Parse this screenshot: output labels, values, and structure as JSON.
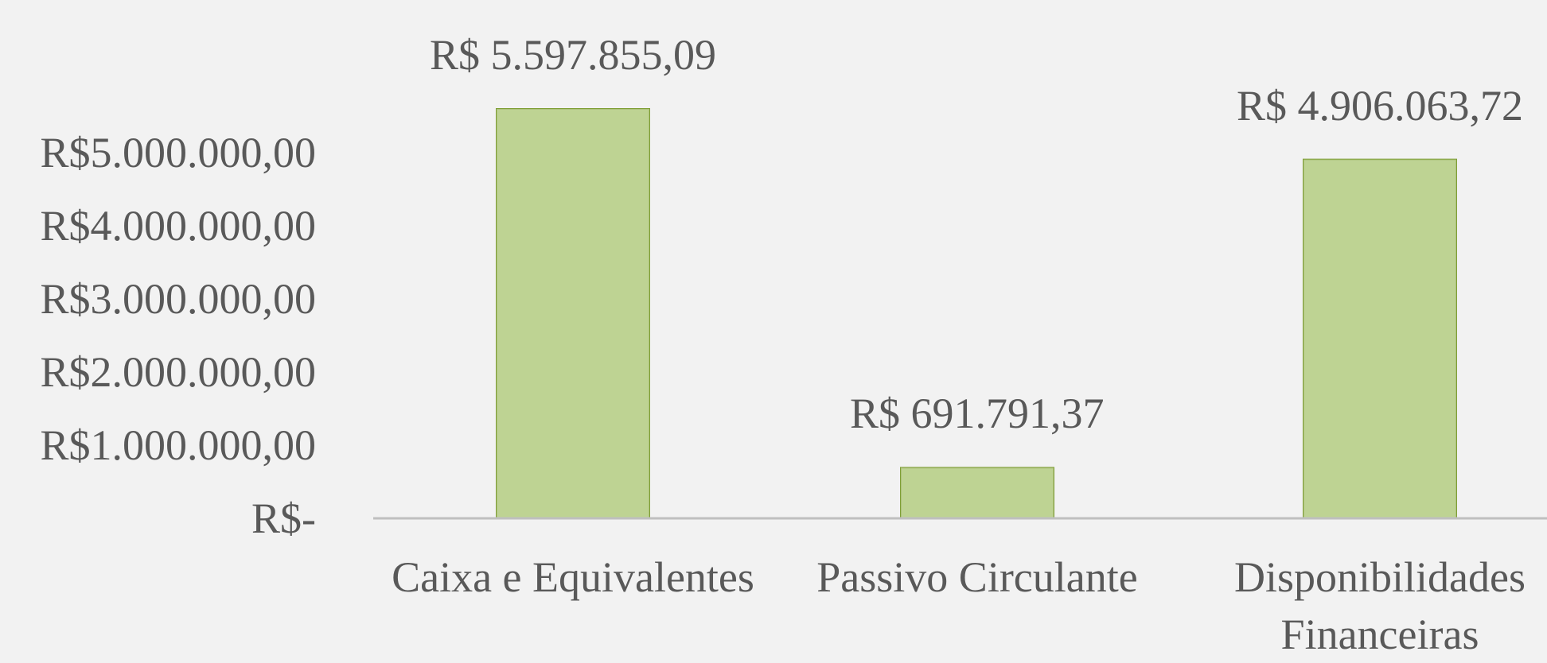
{
  "chart_data": {
    "type": "bar",
    "categories": [
      "Caixa e Equivalentes",
      "Passivo Circulante",
      "Disponibilidades Financeiras"
    ],
    "values": [
      5597855.09,
      691791.37,
      4906063.72
    ],
    "value_labels": [
      "R$ 5.597.855,09",
      "R$ 691.791,37",
      "R$ 4.906.063,72"
    ],
    "color": "#9bbb59",
    "ylim": [
      0,
      6000000
    ],
    "yticks": [
      {
        "value": 0,
        "label": "R$-"
      },
      {
        "value": 1000000,
        "label": "R$1.000.000,00"
      },
      {
        "value": 2000000,
        "label": "R$2.000.000,00"
      },
      {
        "value": 3000000,
        "label": "R$3.000.000,00"
      },
      {
        "value": 4000000,
        "label": "R$4.000.000,00"
      },
      {
        "value": 5000000,
        "label": "R$5.000.000,00"
      }
    ],
    "grid": false
  }
}
